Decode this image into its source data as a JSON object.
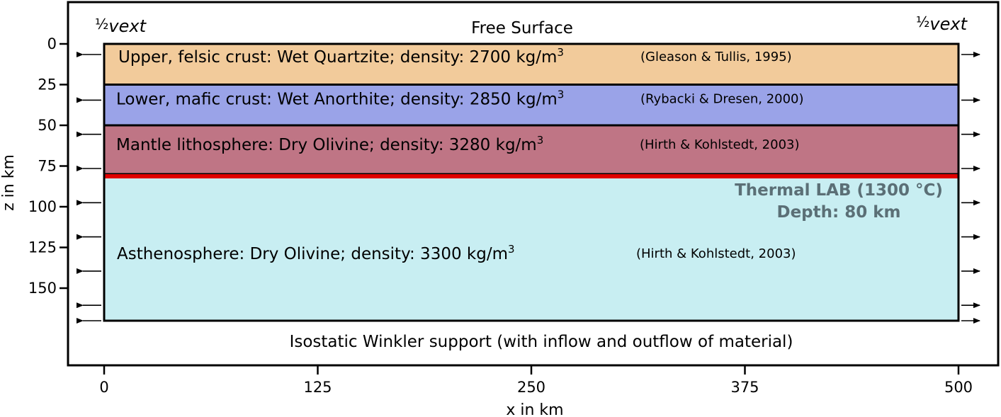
{
  "top_label": "Free Surface",
  "bottom_label": "Isostatic Winkler support (with inflow and outflow of material)",
  "velocity_left": {
    "frac": "½",
    "v": "v",
    "sub": "ext"
  },
  "velocity_right": {
    "frac": "½",
    "v": "v",
    "sub": "ext"
  },
  "layers": [
    {
      "name": "Upper, felsic crust: Wet Quartzite; density: 2700 kg/m",
      "sup": "3",
      "reference": "(Gleason & Tullis, 1995)",
      "z_top_km": 0,
      "z_bottom_km": 25,
      "color": "#f2cb9b"
    },
    {
      "name": "Lower, mafic crust: Wet Anorthite; density: 2850 kg/m",
      "sup": "3",
      "reference": "(Rybacki & Dresen, 2000)",
      "z_top_km": 25,
      "z_bottom_km": 50,
      "color": "#9aa3e8"
    },
    {
      "name": "Mantle lithosphere: Dry Olivine; density: 3280 kg/m",
      "sup": "3",
      "reference": "(Hirth & Kohlstedt, 2003)",
      "z_top_km": 50,
      "z_bottom_km": 80,
      "color": "#bf7585"
    },
    {
      "name": "Asthenosphere: Dry Olivine; density: 3300 kg/m",
      "sup": "3",
      "reference": "(Hirth & Kohlstedt, 2003)",
      "z_top_km": 80,
      "z_bottom_km": 170,
      "color": "#c8eef2"
    }
  ],
  "lab": {
    "line1": "Thermal LAB (1300 °C)",
    "line2": "Depth: 80 km",
    "depth_km": 80,
    "color": "#e00000"
  },
  "x_axis": {
    "label": "x in km",
    "ticks": [
      "0",
      "125",
      "250",
      "375",
      "500"
    ]
  },
  "y_axis": {
    "label": "z in km",
    "ticks": [
      "0",
      "25",
      "50",
      "75",
      "100",
      "125",
      "150"
    ]
  },
  "arrow_depths_km": [
    0,
    28,
    49,
    70,
    91,
    112,
    133,
    154,
    170
  ]
}
